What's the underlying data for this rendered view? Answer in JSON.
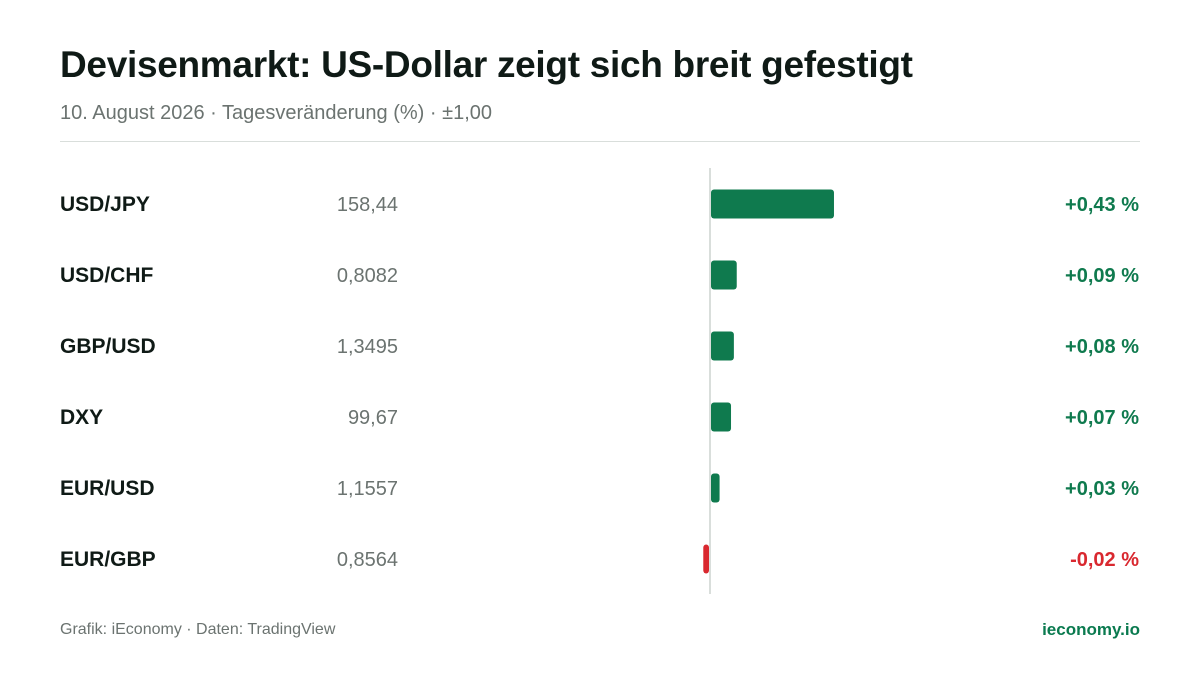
{
  "header": {
    "title": "Devisenmarkt: US-Dollar zeigt sich breit gefestigt",
    "subtitle": "10. August 2026 · Tagesveränderung (%) · ±1,00"
  },
  "footer": {
    "credit": "Grafik: iEconomy · Daten: TradingView",
    "brand": "ieconomy.io"
  },
  "colors": {
    "positive": "#0f7a4e",
    "negative": "#d9282f",
    "axis": "#d9dedb"
  },
  "chart_data": {
    "type": "bar",
    "orientation": "horizontal",
    "categories": [
      "USD/JPY",
      "USD/CHF",
      "GBP/USD",
      "DXY",
      "EUR/USD",
      "EUR/GBP"
    ],
    "prices": [
      "158,44",
      "0,8082",
      "1,3495",
      "99,67",
      "1,1557",
      "0,8564"
    ],
    "values": [
      0.43,
      0.09,
      0.08,
      0.07,
      0.03,
      -0.02
    ],
    "value_labels": [
      "+0,43 %",
      "+0,09 %",
      "+0,08 %",
      "+0,07 %",
      "+0,03 %",
      "-0,02 %"
    ],
    "xlim": [
      -1,
      1
    ],
    "grid": false,
    "legend": "none"
  }
}
